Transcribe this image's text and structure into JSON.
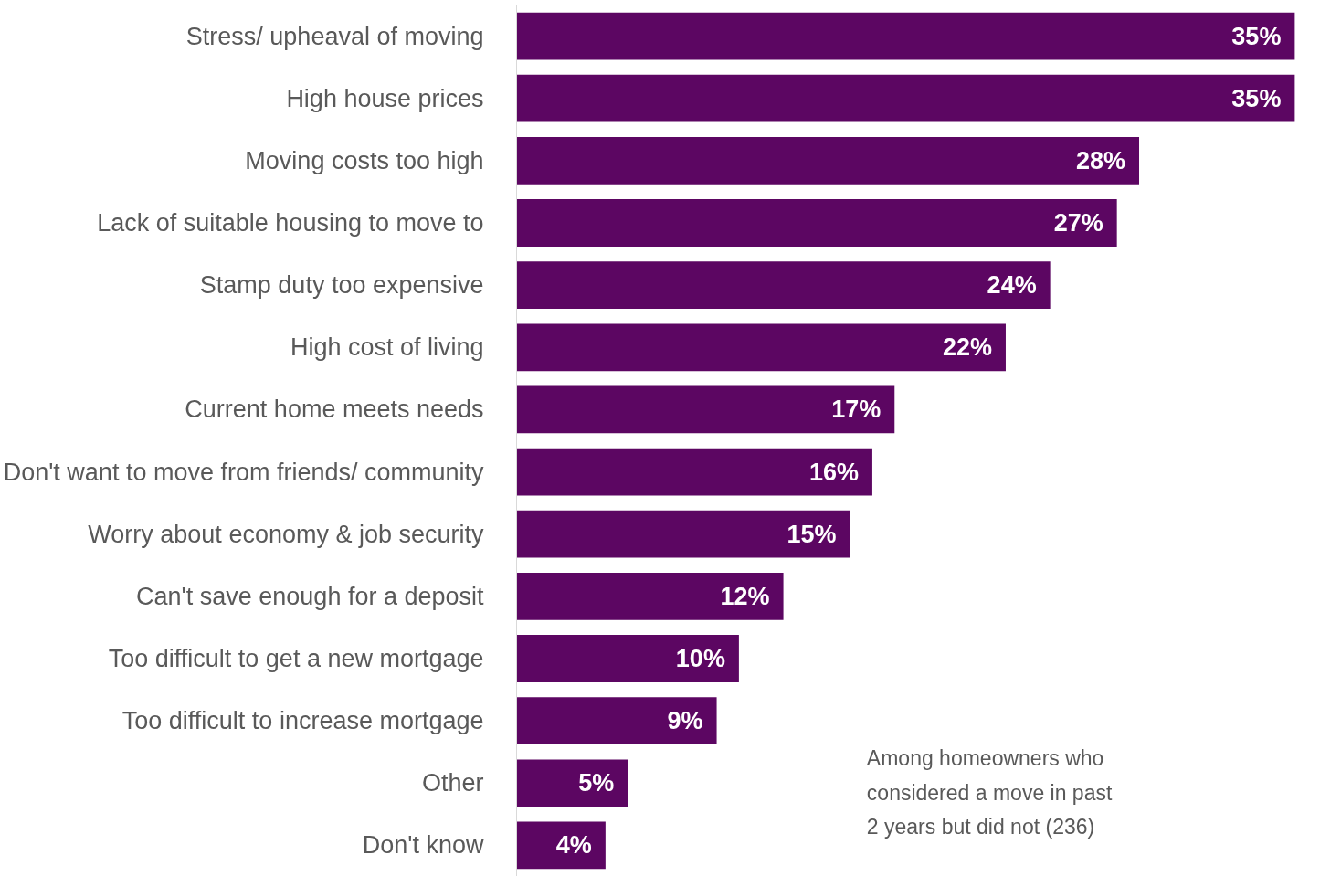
{
  "chart_data": {
    "type": "bar",
    "orientation": "horizontal",
    "categories": [
      "Stress/ upheaval of moving",
      "High house prices",
      "Moving costs too high",
      "Lack of suitable housing to move to",
      "Stamp duty too expensive",
      "High cost of living",
      "Current home meets needs",
      "Don't want to move from friends/ community",
      "Worry about economy & job security",
      "Can't save enough for a deposit",
      "Too difficult to get a new mortgage",
      "Too difficult to increase mortgage",
      "Other",
      "Don't know"
    ],
    "values": [
      35,
      35,
      28,
      27,
      24,
      22,
      17,
      16,
      15,
      12,
      10,
      9,
      5,
      4
    ],
    "value_labels": [
      "35%",
      "35%",
      "28%",
      "27%",
      "24%",
      "22%",
      "17%",
      "16%",
      "15%",
      "12%",
      "10%",
      "9%",
      "5%",
      "4%"
    ],
    "color": "#5c0662",
    "annotations": [
      "Among homeowners who considered a move in past 2 years but did not (236)"
    ]
  }
}
